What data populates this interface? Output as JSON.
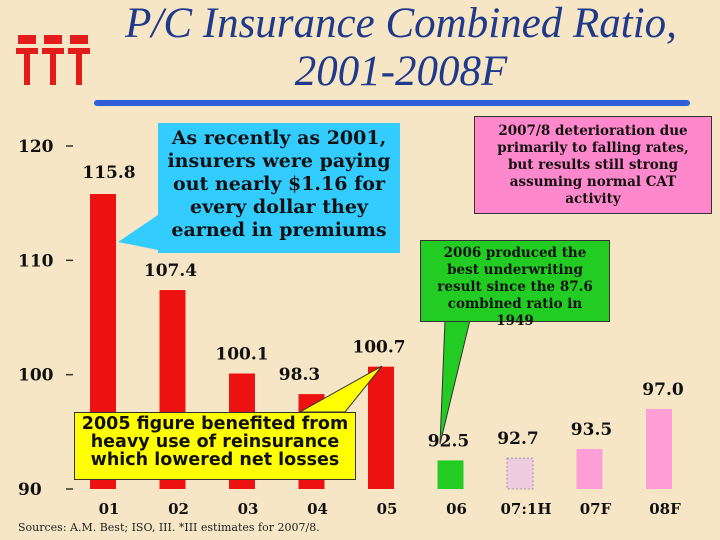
{
  "title": "P/C Insurance Combined Ratio, 2001-2008F",
  "title_line1": "P/C Insurance Combined Ratio,",
  "title_line2": "2001-2008F",
  "logo": "iii",
  "source": "Sources: A.M. Best; ISO, III. *III estimates for 2007/8.",
  "callouts": {
    "c2001": "As recently as 2001, insurers were paying out nearly $1.16 for every dollar they earned in premiums",
    "c2007": "2007/8 deterioration due primarily to falling rates, but results still strong assuming normal  CAT activity",
    "c2006": "2006  produced the best underwriting result since the 87.6 combined ratio in 1949",
    "c2005": "2005 figure benefited from heavy use of reinsurance which lowered net losses"
  },
  "colors": {
    "red": "#ee1111",
    "green": "#22cc22",
    "pink": "#ff88cc",
    "blue": "#1f3a8a"
  },
  "chart_data": {
    "type": "bar",
    "categories": [
      "01",
      "02",
      "03",
      "04",
      "05",
      "06",
      "07:1H",
      "07F",
      "08F"
    ],
    "values": [
      115.8,
      107.4,
      100.1,
      98.3,
      100.7,
      92.5,
      92.7,
      93.5,
      97.0
    ],
    "value_labels": [
      "115.8",
      "107.4",
      "100.1",
      "98.3",
      "100.7",
      "92.5",
      "92.7",
      "93.5",
      "97.0"
    ],
    "bar_colors": [
      "#ee1111",
      "#ee1111",
      "#ee1111",
      "#ee1111",
      "#ee1111",
      "#22cc22",
      "#eecce0",
      "#ff9ed6",
      "#ff9ed6"
    ],
    "yticks": [
      90,
      100,
      110,
      120
    ],
    "ylim": [
      90,
      120
    ],
    "grid": false
  }
}
